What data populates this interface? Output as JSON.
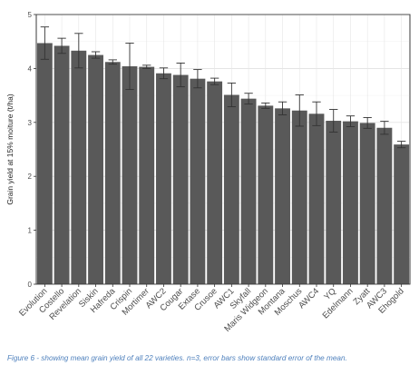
{
  "chart_data": {
    "type": "bar",
    "ylabel": "Grain yield at 15% moiture (t/ha)",
    "xlabel": "",
    "ylim": [
      0,
      5
    ],
    "yticks": [
      0,
      1,
      2,
      3,
      4,
      5
    ],
    "grid": true,
    "bar_color": "#595959",
    "error_bar_color": "#333333",
    "categories": [
      "Evolution",
      "Costello",
      "Revelation",
      "Siskin",
      "Hafreda",
      "Crispin",
      "Mortimer",
      "AWC2",
      "Cougar",
      "Extase",
      "Crusoe",
      "AWC1",
      "Skyfall",
      "Maris Widgeon",
      "Montana",
      "Moschus",
      "AWC4",
      "YQ",
      "Edelmann",
      "Zyatt",
      "AWC3",
      "Ehogold"
    ],
    "values": [
      4.47,
      4.42,
      4.33,
      4.25,
      4.12,
      4.04,
      4.03,
      3.91,
      3.88,
      3.81,
      3.76,
      3.51,
      3.44,
      3.31,
      3.26,
      3.22,
      3.16,
      3.03,
      3.02,
      2.99,
      2.9,
      2.59
    ],
    "errors": [
      0.3,
      0.14,
      0.32,
      0.06,
      0.04,
      0.43,
      0.03,
      0.1,
      0.22,
      0.17,
      0.06,
      0.22,
      0.1,
      0.05,
      0.12,
      0.29,
      0.22,
      0.21,
      0.1,
      0.1,
      0.12,
      0.06
    ]
  },
  "caption": "Figure 6 - showing mean grain yield of all 22 varieties. n=3, error bars show standard error of the mean."
}
